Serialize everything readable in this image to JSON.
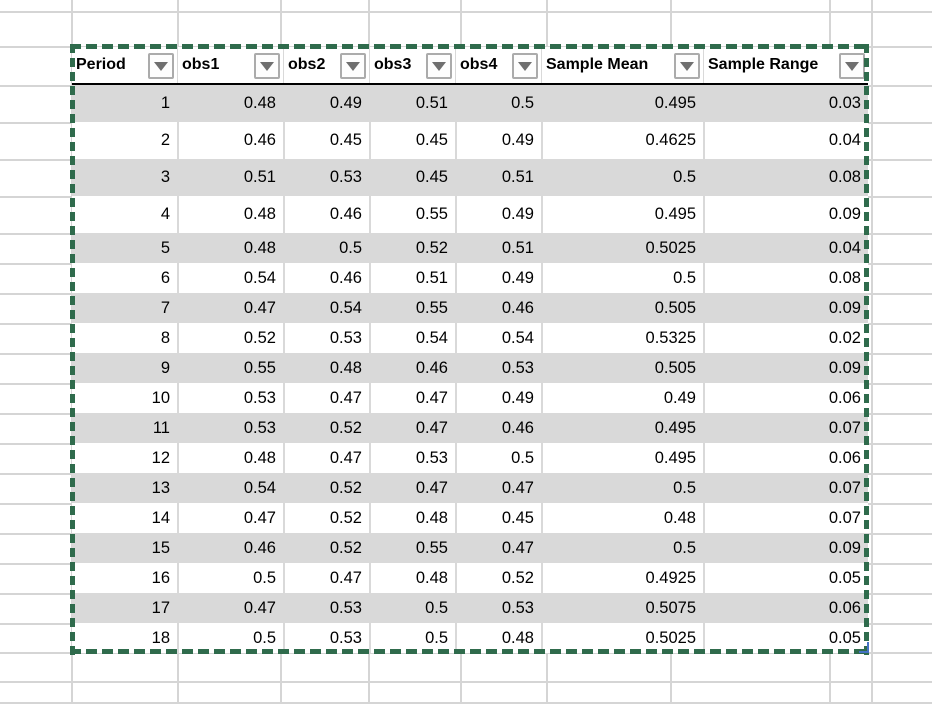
{
  "table": {
    "columns": [
      {
        "label": "Period"
      },
      {
        "label": "obs1"
      },
      {
        "label": "obs2"
      },
      {
        "label": "obs3"
      },
      {
        "label": "obs4"
      },
      {
        "label": "Sample Mean"
      },
      {
        "label": "Sample Range"
      }
    ],
    "rows": [
      [
        "1",
        "0.48",
        "0.49",
        "0.51",
        "0.5",
        "0.495",
        "0.03"
      ],
      [
        "2",
        "0.46",
        "0.45",
        "0.45",
        "0.49",
        "0.4625",
        "0.04"
      ],
      [
        "3",
        "0.51",
        "0.53",
        "0.45",
        "0.51",
        "0.5",
        "0.08"
      ],
      [
        "4",
        "0.48",
        "0.46",
        "0.55",
        "0.49",
        "0.495",
        "0.09"
      ],
      [
        "5",
        "0.48",
        "0.5",
        "0.52",
        "0.51",
        "0.5025",
        "0.04"
      ],
      [
        "6",
        "0.54",
        "0.46",
        "0.51",
        "0.49",
        "0.5",
        "0.08"
      ],
      [
        "7",
        "0.47",
        "0.54",
        "0.55",
        "0.46",
        "0.505",
        "0.09"
      ],
      [
        "8",
        "0.52",
        "0.53",
        "0.54",
        "0.54",
        "0.5325",
        "0.02"
      ],
      [
        "9",
        "0.55",
        "0.48",
        "0.46",
        "0.53",
        "0.505",
        "0.09"
      ],
      [
        "10",
        "0.53",
        "0.47",
        "0.47",
        "0.49",
        "0.49",
        "0.06"
      ],
      [
        "11",
        "0.53",
        "0.52",
        "0.47",
        "0.46",
        "0.495",
        "0.07"
      ],
      [
        "12",
        "0.48",
        "0.47",
        "0.53",
        "0.5",
        "0.495",
        "0.06"
      ],
      [
        "13",
        "0.54",
        "0.52",
        "0.47",
        "0.47",
        "0.5",
        "0.07"
      ],
      [
        "14",
        "0.47",
        "0.52",
        "0.48",
        "0.45",
        "0.48",
        "0.07"
      ],
      [
        "15",
        "0.46",
        "0.52",
        "0.55",
        "0.47",
        "0.5",
        "0.09"
      ],
      [
        "16",
        "0.5",
        "0.47",
        "0.48",
        "0.52",
        "0.4925",
        "0.05"
      ],
      [
        "17",
        "0.47",
        "0.53",
        "0.5",
        "0.53",
        "0.5075",
        "0.06"
      ],
      [
        "18",
        "0.5",
        "0.53",
        "0.5",
        "0.48",
        "0.5025",
        "0.05"
      ]
    ]
  },
  "icons": {
    "filter_dropdown": "triangle-down"
  },
  "colors": {
    "band_gray": "#d9d9d9",
    "gridline_gray": "#d5d5d5",
    "selection_green": "#2f6b4c",
    "resize_handle_blue": "#4472c4",
    "header_underline": "#000000"
  }
}
